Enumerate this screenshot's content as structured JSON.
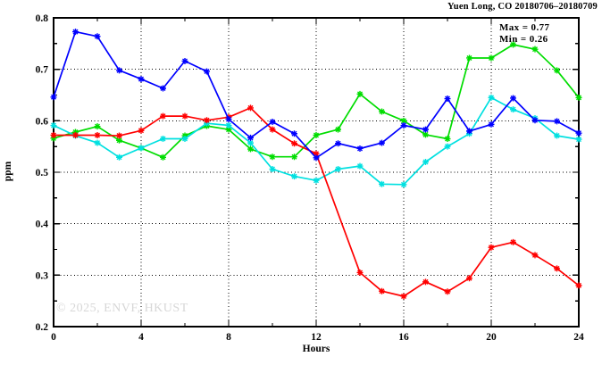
{
  "header": {
    "title": "Yuen Long, CO 20180706–20180709"
  },
  "watermark": "© 2025, ENVF, HKUST",
  "chart_data": {
    "type": "line",
    "title": "Yuen Long, CO 20180706–20180709",
    "xlabel": "Hours",
    "ylabel": "ppm",
    "xlim": [
      0,
      24
    ],
    "ylim": [
      0.2,
      0.8
    ],
    "x_major_ticks": [
      0,
      4,
      8,
      12,
      16,
      20,
      24
    ],
    "x_minor_ticks": [
      2,
      6,
      10,
      14,
      18,
      22
    ],
    "y_major_ticks": [
      0.2,
      0.3,
      0.4,
      0.5,
      0.6,
      0.7,
      0.8
    ],
    "y_minor_ticks": [
      0.25,
      0.35,
      0.45,
      0.55,
      0.65,
      0.75
    ],
    "grid": {
      "x_gridlines": [
        4,
        8,
        12,
        16,
        20
      ],
      "y_gridlines": [
        0.3,
        0.4,
        0.5,
        0.6,
        0.7
      ],
      "style": "dotted"
    },
    "legend": "none",
    "annotations": {
      "max_label": "Max = 0.77",
      "min_label": "Min = 0.26"
    },
    "x": [
      0,
      1,
      2,
      3,
      4,
      5,
      6,
      7,
      8,
      9,
      10,
      11,
      12,
      13,
      14,
      15,
      16,
      17,
      18,
      19,
      20,
      21,
      22,
      23,
      24
    ],
    "series": [
      {
        "name": "series_green",
        "color": "#00dd00",
        "values": [
          0.566,
          0.578,
          0.589,
          0.562,
          0.547,
          0.529,
          0.571,
          0.59,
          0.583,
          0.545,
          0.53,
          0.53,
          0.572,
          0.583,
          0.652,
          0.618,
          0.6,
          0.573,
          0.565,
          0.722,
          0.722,
          0.748,
          0.739,
          0.698,
          0.645
        ]
      },
      {
        "name": "series_cyan",
        "color": "#00e0e0",
        "values": [
          0.591,
          0.571,
          0.557,
          0.529,
          0.547,
          0.565,
          0.565,
          0.595,
          0.591,
          0.557,
          0.506,
          0.492,
          0.484,
          0.506,
          0.512,
          0.477,
          0.476,
          0.52,
          0.55,
          0.575,
          0.645,
          0.622,
          0.605,
          0.571,
          0.564
        ]
      },
      {
        "name": "series_red",
        "color": "#ff0000",
        "skip_markers": [
          13
        ],
        "values": [
          0.572,
          0.572,
          0.572,
          0.571,
          0.581,
          0.609,
          0.609,
          0.601,
          0.607,
          0.625,
          0.583,
          0.556,
          0.536,
          0.42,
          0.305,
          0.269,
          0.259,
          0.287,
          0.268,
          0.294,
          0.354,
          0.364,
          0.339,
          0.313,
          0.28
        ]
      },
      {
        "name": "series_blue",
        "color": "#0000ff",
        "values": [
          0.646,
          0.773,
          0.764,
          0.698,
          0.681,
          0.663,
          0.716,
          0.696,
          0.603,
          0.567,
          0.598,
          0.575,
          0.528,
          0.556,
          0.546,
          0.557,
          0.591,
          0.583,
          0.643,
          0.58,
          0.593,
          0.644,
          0.601,
          0.599,
          0.576
        ]
      }
    ]
  }
}
